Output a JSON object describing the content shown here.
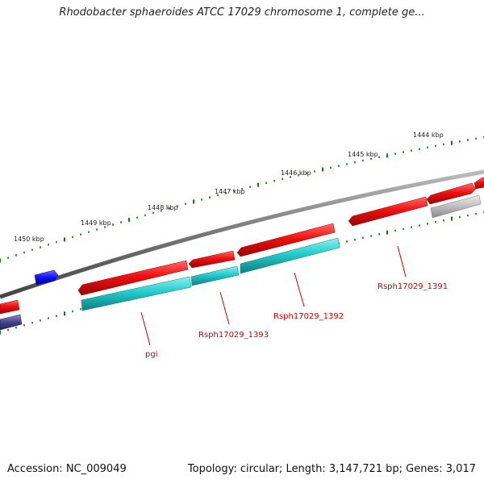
{
  "title": "Rhodobacter sphaeroides ATCC 17029 chromosome 1, complete ge...",
  "footer": {
    "accession": "Accession: NC_009049",
    "summary": "Topology: circular; Length: 3,147,721 bp; Genes: 3,017"
  },
  "ticks": [
    "1444 kbp",
    "1445 kbp",
    "1446 kbp",
    "1447 kbp",
    "1448 kbp",
    "1449 kbp",
    "1450 kbp"
  ],
  "gene_labels": [
    "Rsph17029_1391",
    "Rsph17029_1392",
    "Rsph17029_1393",
    "pgi"
  ],
  "colors": {
    "forward_gene": "#ee1111",
    "cds": "#22cccc",
    "gray_feature": "#b8b8b8",
    "blue_feature": "#1111ee",
    "navy_feature": "#444488",
    "tick": "#117711",
    "label": "#cc0000",
    "backbone": "#777777"
  }
}
